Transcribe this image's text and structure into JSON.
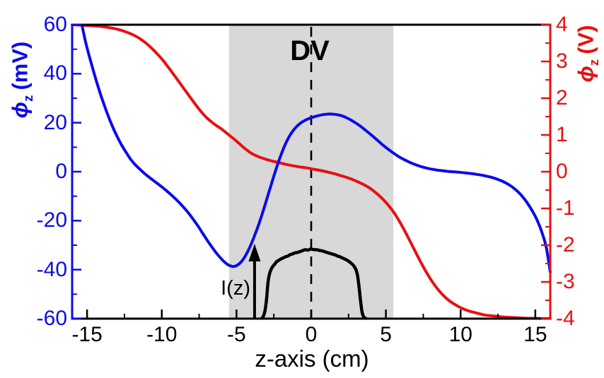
{
  "figure": {
    "labels": {
      "dv": "DV",
      "iz": "I(z)",
      "xaxis": "z-axis (cm)",
      "left_axis": {
        "sym": "ϕ",
        "sub": "z",
        "unit": "(mV)"
      },
      "right_axis": {
        "sym": "ϕ",
        "sub": "z",
        "unit": "(V)"
      }
    },
    "colors": {
      "left": "#0b0bea",
      "right": "#e81010",
      "black": "#000000",
      "region": "#d8d8d8",
      "background": "#ffffff"
    }
  },
  "chart_data": {
    "type": "line",
    "title": "",
    "xlabel": "z-axis (cm)",
    "ylabel_left": "phi_z (mV)",
    "ylabel_right": "phi_z (V)",
    "xlim": [
      -16,
      16
    ],
    "ylim_left": [
      -60,
      60
    ],
    "ylim_right": [
      -4,
      4
    ],
    "grid": false,
    "x_ticks": [
      -15,
      -10,
      -5,
      0,
      5,
      10,
      15
    ],
    "x_minor_ticks": [
      -12.5,
      -7.5,
      -2.5,
      2.5,
      7.5,
      12.5
    ],
    "left_ticks": [
      60,
      40,
      20,
      0,
      -20,
      -40,
      -60
    ],
    "left_minor_ticks": [
      50,
      30,
      10,
      -10,
      -30,
      -50
    ],
    "right_ticks": [
      4,
      3,
      2,
      1,
      0,
      -1,
      -2,
      -3,
      -4
    ],
    "right_minor_ticks": [
      3.5,
      2.5,
      1.5,
      0.5,
      -0.5,
      -1.5,
      -2.5,
      -3.5
    ],
    "shaded_region": {
      "x0": -5.5,
      "x1": 5.5,
      "label": "DV"
    },
    "dashed_line_x": 0,
    "annotation_arrow": {
      "label": "I(z)",
      "z": -3.79
    },
    "series": [
      {
        "name": "phi_z_mV",
        "axis": "left",
        "points": [
          [
            -15.35,
            60
          ],
          [
            -15.1,
            53
          ],
          [
            -14.8,
            46
          ],
          [
            -14.5,
            39.5
          ],
          [
            -14.2,
            33.5
          ],
          [
            -13.9,
            28
          ],
          [
            -13.6,
            23
          ],
          [
            -13.3,
            18.5
          ],
          [
            -13,
            14.5
          ],
          [
            -12.7,
            11
          ],
          [
            -12.4,
            8
          ],
          [
            -12.1,
            5.2
          ],
          [
            -11.8,
            3
          ],
          [
            -11.5,
            1.2
          ],
          [
            -11.2,
            -0.5
          ],
          [
            -10.9,
            -2
          ],
          [
            -10.6,
            -3.4
          ],
          [
            -10.3,
            -4.8
          ],
          [
            -10,
            -6.2
          ],
          [
            -9.7,
            -7.7
          ],
          [
            -9.4,
            -9.3
          ],
          [
            -9.1,
            -11
          ],
          [
            -8.8,
            -12.8
          ],
          [
            -8.5,
            -14.8
          ],
          [
            -8.2,
            -17
          ],
          [
            -7.9,
            -19.4
          ],
          [
            -7.6,
            -22
          ],
          [
            -7.3,
            -24.8
          ],
          [
            -7,
            -27.6
          ],
          [
            -6.7,
            -30.3
          ],
          [
            -6.4,
            -32.8
          ],
          [
            -6.1,
            -35
          ],
          [
            -5.8,
            -36.9
          ],
          [
            -5.5,
            -38.2
          ],
          [
            -5.2,
            -38.7
          ],
          [
            -4.9,
            -38
          ],
          [
            -4.6,
            -36.2
          ],
          [
            -4.3,
            -33.2
          ],
          [
            -4,
            -29.3
          ],
          [
            -3.7,
            -24.7
          ],
          [
            -3.4,
            -19.5
          ],
          [
            -3.1,
            -13.8
          ],
          [
            -2.8,
            -7.8
          ],
          [
            -2.5,
            -1.8
          ],
          [
            -2.2,
            3.8
          ],
          [
            -1.9,
            8.8
          ],
          [
            -1.6,
            12.9
          ],
          [
            -1.3,
            16
          ],
          [
            -1,
            18.3
          ],
          [
            -0.7,
            19.9
          ],
          [
            -0.4,
            21
          ],
          [
            -0.1,
            21.8
          ],
          [
            0.2,
            22.4
          ],
          [
            0.5,
            22.9
          ],
          [
            0.8,
            23.3
          ],
          [
            1.1,
            23.5
          ],
          [
            1.4,
            23.5
          ],
          [
            1.7,
            23.3
          ],
          [
            2,
            22.9
          ],
          [
            2.3,
            22.2
          ],
          [
            2.6,
            21.3
          ],
          [
            2.9,
            20.2
          ],
          [
            3.2,
            19
          ],
          [
            3.5,
            17.6
          ],
          [
            3.8,
            16.1
          ],
          [
            4.1,
            14.6
          ],
          [
            4.4,
            13
          ],
          [
            4.7,
            11.4
          ],
          [
            5,
            9.9
          ],
          [
            5.3,
            8.5
          ],
          [
            5.6,
            7.2
          ],
          [
            5.9,
            6
          ],
          [
            6.2,
            5
          ],
          [
            6.5,
            4.1
          ],
          [
            6.8,
            3.3
          ],
          [
            7.1,
            2.6
          ],
          [
            7.4,
            2
          ],
          [
            7.7,
            1.5
          ],
          [
            8,
            1.1
          ],
          [
            8.4,
            0.7
          ],
          [
            8.8,
            0.4
          ],
          [
            9.2,
            0.1
          ],
          [
            9.6,
            -0.1
          ],
          [
            10,
            -0.3
          ],
          [
            10.4,
            -0.55
          ],
          [
            10.8,
            -0.85
          ],
          [
            11.2,
            -1.2
          ],
          [
            11.6,
            -1.65
          ],
          [
            12,
            -2.2
          ],
          [
            12.4,
            -2.95
          ],
          [
            12.8,
            -3.9
          ],
          [
            13.2,
            -5.2
          ],
          [
            13.6,
            -6.9
          ],
          [
            14,
            -9.2
          ],
          [
            14.4,
            -12.2
          ],
          [
            14.8,
            -16
          ],
          [
            15.1,
            -19.5
          ],
          [
            15.4,
            -24
          ],
          [
            15.7,
            -30
          ],
          [
            15.85,
            -35
          ],
          [
            16,
            -41
          ]
        ]
      },
      {
        "name": "phi_z_V",
        "axis": "right",
        "points": [
          [
            -16,
            4
          ],
          [
            -15.5,
            3.99
          ],
          [
            -15,
            3.98
          ],
          [
            -14.5,
            3.97
          ],
          [
            -14,
            3.95
          ],
          [
            -13.5,
            3.92
          ],
          [
            -13,
            3.88
          ],
          [
            -12.5,
            3.82
          ],
          [
            -12,
            3.74
          ],
          [
            -11.5,
            3.63
          ],
          [
            -11,
            3.48
          ],
          [
            -10.5,
            3.29
          ],
          [
            -10,
            3.07
          ],
          [
            -9.5,
            2.81
          ],
          [
            -9,
            2.53
          ],
          [
            -8.5,
            2.25
          ],
          [
            -8,
            1.97
          ],
          [
            -7.5,
            1.7
          ],
          [
            -7,
            1.47
          ],
          [
            -6.5,
            1.3
          ],
          [
            -6,
            1.16
          ],
          [
            -5.6,
            1.03
          ],
          [
            -5.2,
            0.9
          ],
          [
            -4.8,
            0.76
          ],
          [
            -4.4,
            0.62
          ],
          [
            -4,
            0.5
          ],
          [
            -3.6,
            0.42
          ],
          [
            -3.2,
            0.36
          ],
          [
            -2.8,
            0.31
          ],
          [
            -2.4,
            0.27
          ],
          [
            -2,
            0.23
          ],
          [
            -1.6,
            0.19
          ],
          [
            -1.2,
            0.16
          ],
          [
            -0.8,
            0.13
          ],
          [
            -0.4,
            0.11
          ],
          [
            0,
            0.08
          ],
          [
            0.4,
            0.05
          ],
          [
            0.8,
            0.02
          ],
          [
            1.2,
            -0.02
          ],
          [
            1.6,
            -0.06
          ],
          [
            2,
            -0.11
          ],
          [
            2.4,
            -0.16
          ],
          [
            2.8,
            -0.22
          ],
          [
            3.2,
            -0.29
          ],
          [
            3.6,
            -0.37
          ],
          [
            4,
            -0.47
          ],
          [
            4.4,
            -0.6
          ],
          [
            4.8,
            -0.75
          ],
          [
            5.2,
            -0.93
          ],
          [
            5.6,
            -1.15
          ],
          [
            6,
            -1.42
          ],
          [
            6.4,
            -1.72
          ],
          [
            6.8,
            -2.04
          ],
          [
            7.2,
            -2.36
          ],
          [
            7.6,
            -2.66
          ],
          [
            8,
            -2.93
          ],
          [
            8.4,
            -3.16
          ],
          [
            8.8,
            -3.35
          ],
          [
            9.2,
            -3.5
          ],
          [
            9.6,
            -3.61
          ],
          [
            10,
            -3.7
          ],
          [
            10.4,
            -3.77
          ],
          [
            10.8,
            -3.82
          ],
          [
            11.2,
            -3.86
          ],
          [
            11.6,
            -3.9
          ],
          [
            12,
            -3.92
          ],
          [
            12.5,
            -3.94
          ],
          [
            13,
            -3.96
          ],
          [
            13.5,
            -3.97
          ],
          [
            14,
            -3.98
          ],
          [
            14.5,
            -3.99
          ],
          [
            15,
            -3.99
          ],
          [
            15.5,
            -4
          ],
          [
            16,
            -4
          ]
        ]
      },
      {
        "name": "I_z",
        "axis": "intensity",
        "points": [
          [
            -3.3,
            0
          ],
          [
            -3.2,
            0.03
          ],
          [
            -3.1,
            0.1
          ],
          [
            -3,
            0.25
          ],
          [
            -2.92,
            0.45
          ],
          [
            -2.85,
            0.58
          ],
          [
            -2.75,
            0.67
          ],
          [
            -2.6,
            0.74
          ],
          [
            -2.45,
            0.78
          ],
          [
            -2.3,
            0.82
          ],
          [
            -2.15,
            0.84
          ],
          [
            -2,
            0.86
          ],
          [
            -1.85,
            0.875
          ],
          [
            -1.7,
            0.89
          ],
          [
            -1.55,
            0.9
          ],
          [
            -1.4,
            0.92
          ],
          [
            -1.25,
            0.93
          ],
          [
            -1.1,
            0.945
          ],
          [
            -0.95,
            0.95
          ],
          [
            -0.8,
            0.96
          ],
          [
            -0.65,
            0.97
          ],
          [
            -0.5,
            0.985
          ],
          [
            -0.35,
            0.99
          ],
          [
            -0.2,
            0.985
          ],
          [
            -0.05,
            1
          ],
          [
            0.1,
            0.995
          ],
          [
            0.25,
            0.99
          ],
          [
            0.4,
            0.99
          ],
          [
            0.55,
            0.98
          ],
          [
            0.7,
            0.975
          ],
          [
            0.85,
            0.965
          ],
          [
            1,
            0.955
          ],
          [
            1.15,
            0.945
          ],
          [
            1.3,
            0.935
          ],
          [
            1.45,
            0.925
          ],
          [
            1.6,
            0.915
          ],
          [
            1.75,
            0.9
          ],
          [
            1.9,
            0.89
          ],
          [
            2.05,
            0.875
          ],
          [
            2.2,
            0.86
          ],
          [
            2.35,
            0.845
          ],
          [
            2.5,
            0.825
          ],
          [
            2.65,
            0.8
          ],
          [
            2.8,
            0.77
          ],
          [
            2.9,
            0.74
          ],
          [
            3,
            0.7
          ],
          [
            3.08,
            0.64
          ],
          [
            3.15,
            0.55
          ],
          [
            3.22,
            0.42
          ],
          [
            3.3,
            0.26
          ],
          [
            3.38,
            0.12
          ],
          [
            3.45,
            0.05
          ],
          [
            3.55,
            0.01
          ],
          [
            3.65,
            0
          ]
        ]
      }
    ]
  }
}
